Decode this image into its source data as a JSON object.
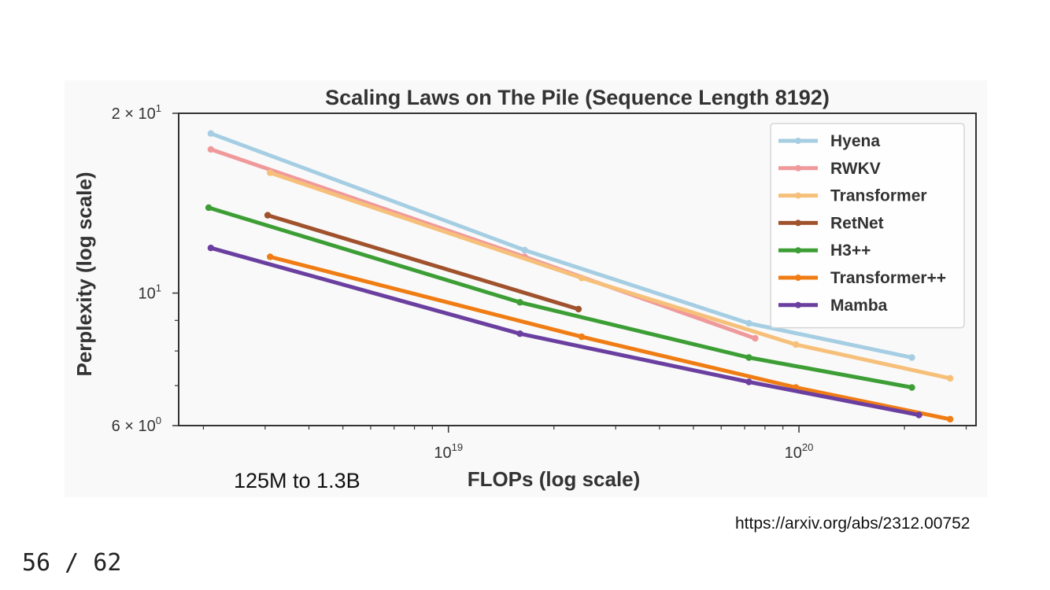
{
  "chart_data": {
    "type": "line",
    "title": "Scaling Laws on The Pile (Sequence Length 8192)",
    "xlabel": "FLOPs (log scale)",
    "ylabel": "Perplexity (log scale)",
    "xscale": "log",
    "yscale": "log",
    "xlim": [
      1.7e+18,
      3.2e+20
    ],
    "ylim": [
      6,
      20
    ],
    "x_major_ticks": [
      {
        "value": 1e+19,
        "base": "10",
        "exp": "19"
      },
      {
        "value": 1e+20,
        "base": "10",
        "exp": "20"
      }
    ],
    "y_major_ticks": [
      {
        "value": 20,
        "label": "2 × 10",
        "exp": "1"
      },
      {
        "value": 10,
        "label": "10",
        "exp": "1"
      },
      {
        "value": 6,
        "label": "6 × 10",
        "exp": "0"
      }
    ],
    "grid": false,
    "legend_position": "top-right",
    "series": [
      {
        "name": "Hyena",
        "color": "#a6cee3",
        "points": [
          [
            2.1e+18,
            18.5
          ],
          [
            1.65e+19,
            11.8
          ],
          [
            7.2e+19,
            8.9
          ],
          [
            2.1e+20,
            7.8
          ]
        ]
      },
      {
        "name": "RWKV",
        "color": "#f0999b",
        "points": [
          [
            2.1e+18,
            17.4
          ],
          [
            1.65e+19,
            11.5
          ],
          [
            7.5e+19,
            8.4
          ]
        ]
      },
      {
        "name": "Transformer",
        "color": "#f6c07a",
        "points": [
          [
            3.1e+18,
            15.9
          ],
          [
            2.4e+19,
            10.6
          ],
          [
            9.8e+19,
            8.2
          ],
          [
            2.7e+20,
            7.2
          ]
        ]
      },
      {
        "name": "RetNet",
        "color": "#a0522d",
        "points": [
          [
            3.05e+18,
            13.5
          ],
          [
            2.35e+19,
            9.4
          ]
        ]
      },
      {
        "name": "H3++",
        "color": "#3c9e35",
        "points": [
          [
            2.07e+18,
            13.9
          ],
          [
            1.6e+19,
            9.65
          ],
          [
            7.2e+19,
            7.8
          ],
          [
            2.1e+20,
            6.95
          ]
        ]
      },
      {
        "name": "Transformer++",
        "color": "#f07c14",
        "points": [
          [
            3.1e+18,
            11.5
          ],
          [
            2.4e+19,
            8.45
          ],
          [
            9.8e+19,
            6.95
          ],
          [
            2.7e+20,
            6.15
          ]
        ]
      },
      {
        "name": "Mamba",
        "color": "#6a3fa0",
        "points": [
          [
            2.1e+18,
            11.9
          ],
          [
            1.6e+19,
            8.55
          ],
          [
            7.2e+19,
            7.1
          ],
          [
            2.2e+20,
            6.25
          ]
        ]
      }
    ]
  },
  "annotations": {
    "model_size_range": "125M to 1.3B",
    "source_url": "https://arxiv.org/abs/2312.00752"
  },
  "page_counter": "56 / 62"
}
